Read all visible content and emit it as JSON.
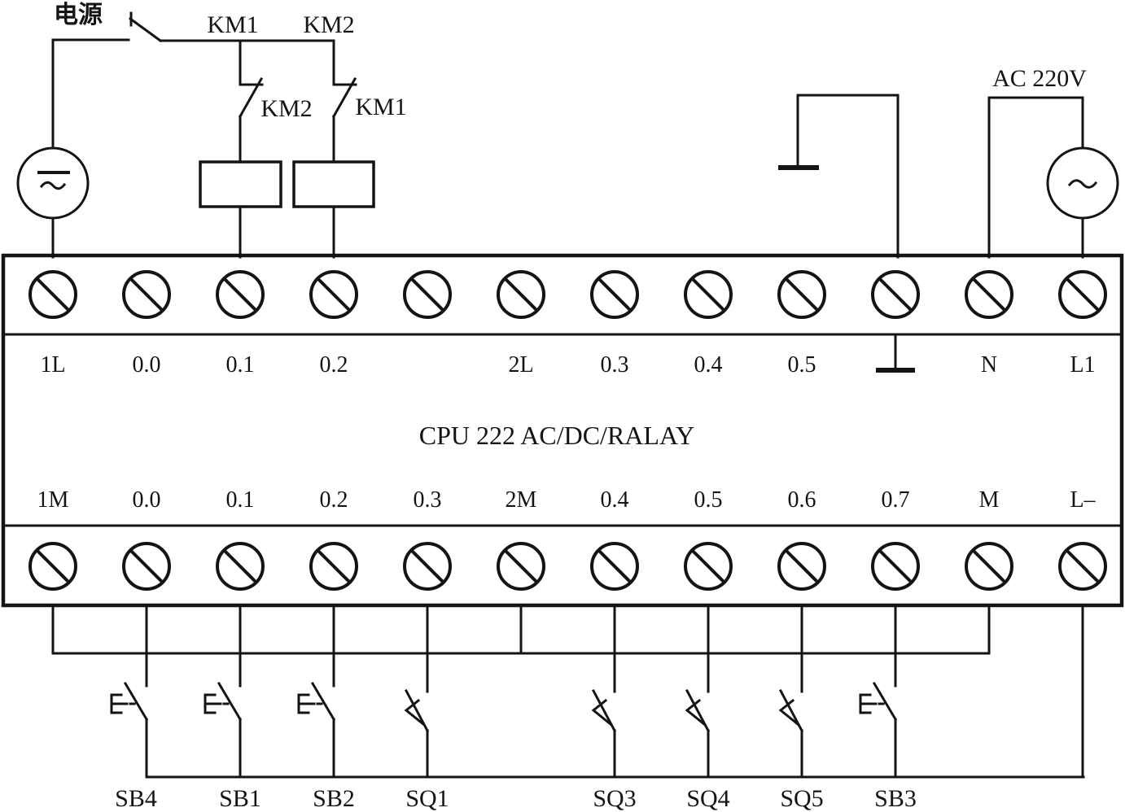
{
  "colors": {
    "line": "#141414",
    "background": "#ffffff"
  },
  "power_source": {
    "label": "电源"
  },
  "ac_supply": {
    "label": "AC 220V"
  },
  "plc": {
    "title": "CPU 222 AC/DC/RALAY"
  },
  "control_circuit": {
    "branch1_contactor_label": "KM1",
    "branch2_contactor_label": "KM2",
    "branch1_interlock_label": "KM2",
    "branch2_interlock_label": "KM1"
  },
  "terminals": {
    "top": [
      "1L",
      "0.0",
      "0.1",
      "0.2",
      "",
      "2L",
      "0.3",
      "0.4",
      "0.5",
      "",
      "N",
      "L1"
    ],
    "bottom": [
      "1M",
      "0.0",
      "0.1",
      "0.2",
      "0.3",
      "2M",
      "0.4",
      "0.5",
      "0.6",
      "0.7",
      "M",
      "L–"
    ]
  },
  "switches": [
    {
      "label": "SB4",
      "type": "pushbutton"
    },
    {
      "label": "SB1",
      "type": "pushbutton"
    },
    {
      "label": "SB2",
      "type": "pushbutton"
    },
    {
      "label": "SQ1",
      "type": "limit"
    },
    {
      "label": "SQ3",
      "type": "limit"
    },
    {
      "label": "SQ4",
      "type": "limit"
    },
    {
      "label": "SQ5",
      "type": "limit"
    },
    {
      "label": "SB3",
      "type": "pushbutton"
    }
  ]
}
